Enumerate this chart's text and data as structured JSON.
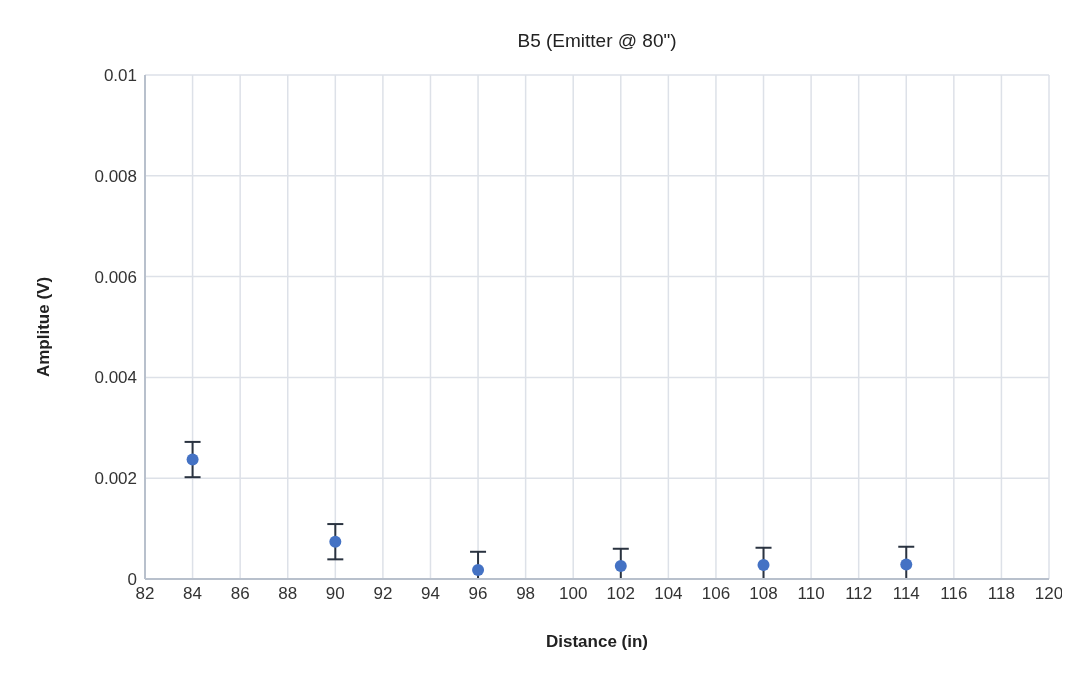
{
  "chart_data": {
    "type": "scatter",
    "title": "B5 (Emitter @ 80\")",
    "xlabel": "Distance (in)",
    "ylabel": "Amplitue (V)",
    "x": [
      84,
      90,
      96,
      102,
      108,
      114
    ],
    "values": [
      0.00237,
      0.00074,
      0.00018,
      0.00026,
      0.00028,
      0.00029
    ],
    "errors": [
      [
        0.00202,
        0.00272
      ],
      [
        0.00039,
        0.00109
      ],
      [
        0,
        0.00054
      ],
      [
        0,
        0.0006
      ],
      [
        0,
        0.00062
      ],
      [
        0,
        0.00064
      ]
    ],
    "color": "#4472c4",
    "marker": "circle",
    "xlim": [
      82,
      120
    ],
    "xticks": [
      82,
      84,
      86,
      88,
      90,
      92,
      94,
      96,
      98,
      100,
      102,
      104,
      106,
      108,
      110,
      112,
      114,
      116,
      118,
      120
    ],
    "ylim": [
      0,
      0.01
    ],
    "yticks": [
      0,
      0.002,
      0.004,
      0.006,
      0.008,
      0.01
    ],
    "grid": true
  }
}
